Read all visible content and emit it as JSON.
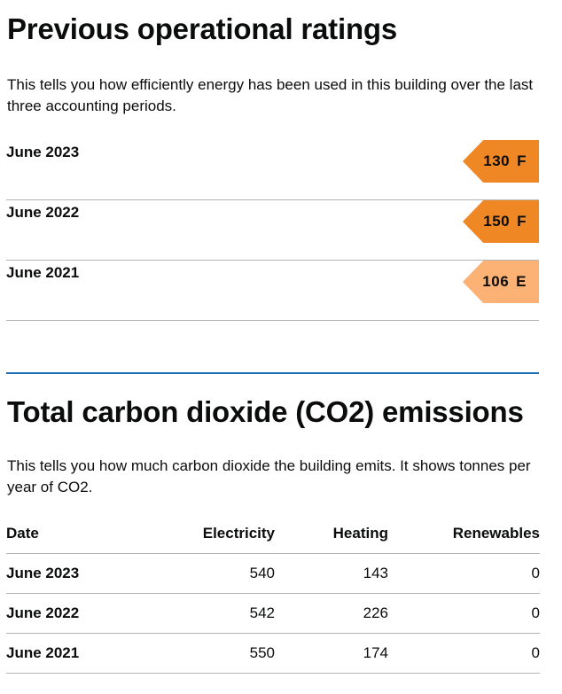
{
  "ratings_section": {
    "title": "Previous operational ratings",
    "description": "This tells you how efficiently energy has been used in this building over the last three accounting periods.",
    "rows": [
      {
        "date": "June 2023",
        "score": "130",
        "band": "F",
        "color": "#f08725"
      },
      {
        "date": "June 2022",
        "score": "150",
        "band": "F",
        "color": "#f08725"
      },
      {
        "date": "June 2021",
        "score": "106",
        "band": "E",
        "color": "#fcb275"
      }
    ]
  },
  "emissions_section": {
    "title": "Total carbon dioxide (CO2) emissions",
    "description": "This tells you how much carbon dioxide the building emits. It shows tonnes per year of CO2.",
    "headers": [
      "Date",
      "Electricity",
      "Heating",
      "Renewables"
    ],
    "rows": [
      {
        "date": "June 2023",
        "electricity": "540",
        "heating": "143",
        "renewables": "0"
      },
      {
        "date": "June 2022",
        "electricity": "542",
        "heating": "226",
        "renewables": "0"
      },
      {
        "date": "June 2021",
        "electricity": "550",
        "heating": "174",
        "renewables": "0"
      }
    ]
  },
  "colors": {
    "text": "#0b0c0c",
    "divider": "#b1b4b6",
    "section_rule": "#1d70b8"
  }
}
